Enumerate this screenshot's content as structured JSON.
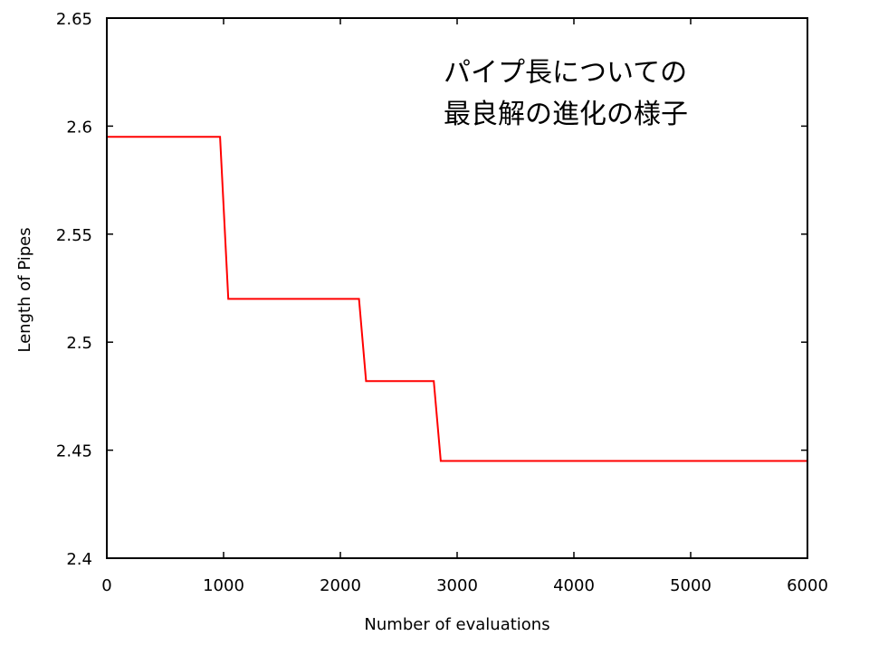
{
  "chart_data": {
    "type": "line",
    "title": "",
    "xlabel": "Number of evaluations",
    "ylabel": "Length of Pipes",
    "xlim": [
      0,
      6000
    ],
    "ylim": [
      2.4,
      2.65
    ],
    "x_ticks": [
      "0",
      "1000",
      "2000",
      "3000",
      "4000",
      "5000",
      "6000"
    ],
    "y_ticks": [
      "2.4",
      "2.45",
      "2.5",
      "2.55",
      "2.6",
      "2.65"
    ],
    "grid": false,
    "series": [
      {
        "color": "#ff0000",
        "x": [
          0,
          970,
          1040,
          2160,
          2220,
          2800,
          2860,
          6000
        ],
        "y": [
          2.595,
          2.595,
          2.52,
          2.52,
          2.482,
          2.482,
          2.445,
          2.445
        ]
      }
    ],
    "annotation": {
      "lines": [
        "パイプ長についての",
        "最良解の進化の様子"
      ]
    }
  }
}
